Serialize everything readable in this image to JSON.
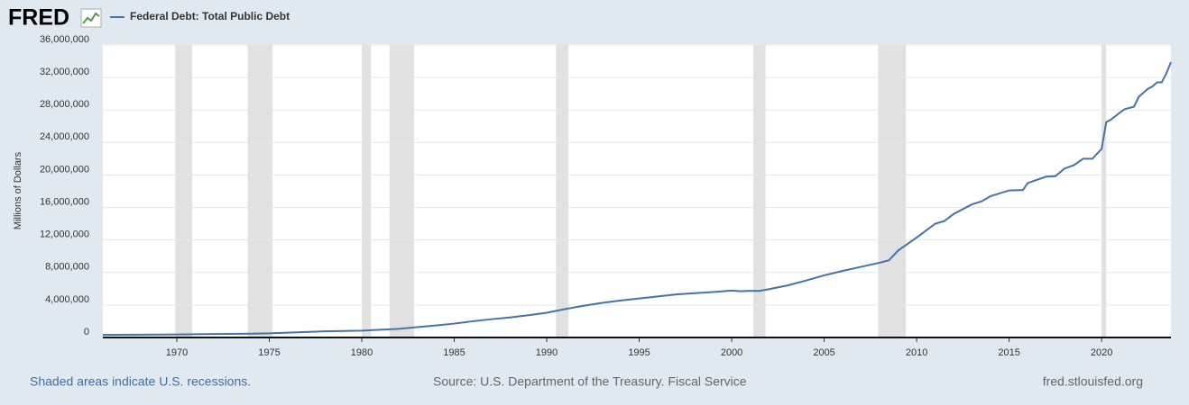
{
  "chart_data": {
    "type": "line",
    "logo": "FRED",
    "y_label": "Millions of Dollars",
    "note": "Shaded areas indicate U.S. recessions.",
    "source": "Source: U.S. Department of the Treasury. Fiscal Service",
    "site": "fred.stlouisfed.org",
    "x": [
      1966,
      1968,
      1970,
      1972,
      1974,
      1975,
      1976,
      1978,
      1980,
      1981,
      1982,
      1983,
      1984,
      1985,
      1986,
      1987,
      1988,
      1989,
      1990,
      1991,
      1992,
      1993,
      1994,
      1995,
      1996,
      1997,
      1998,
      1999,
      2000,
      2000.5,
      2001,
      2001.5,
      2002,
      2003,
      2004,
      2005,
      2006,
      2007,
      2008,
      2008.5,
      2009,
      2010,
      2011,
      2011.5,
      2012,
      2013,
      2013.5,
      2014,
      2015,
      2015.75,
      2016,
      2017,
      2017.5,
      2018,
      2018.5,
      2019,
      2019.5,
      2020,
      2020.25,
      2020.5,
      2021,
      2021.25,
      2021.75,
      2022,
      2022.5,
      2022.75,
      2023,
      2023.25,
      2023.5,
      2023.75
    ],
    "series": [
      {
        "name": "Federal Debt: Total Public Debt",
        "color": "#4572a7",
        "values": [
          321000,
          348000,
          370000,
          428000,
          475000,
          509000,
          600000,
          760000,
          850000,
          960000,
          1070000,
          1270000,
          1480000,
          1710000,
          2000000,
          2250000,
          2460000,
          2740000,
          3050000,
          3500000,
          3900000,
          4260000,
          4560000,
          4800000,
          5050000,
          5300000,
          5460000,
          5600000,
          5770000,
          5690000,
          5740000,
          5730000,
          5940000,
          6400000,
          7000000,
          7650000,
          8200000,
          8700000,
          9200000,
          9500000,
          10700000,
          12300000,
          14000000,
          14340000,
          15200000,
          16400000,
          16740000,
          17400000,
          18100000,
          18150000,
          19000000,
          19800000,
          19850000,
          20800000,
          21200000,
          22000000,
          22000000,
          23200000,
          26500000,
          26800000,
          27700000,
          28100000,
          28400000,
          29600000,
          30600000,
          30900000,
          31400000,
          31400000,
          32500000,
          33900000
        ]
      }
    ],
    "recessions": [
      {
        "start": 1969.92,
        "end": 1970.83
      },
      {
        "start": 1973.83,
        "end": 1975.17
      },
      {
        "start": 1980.0,
        "end": 1980.5
      },
      {
        "start": 1981.5,
        "end": 1982.83
      },
      {
        "start": 1990.5,
        "end": 1991.17
      },
      {
        "start": 2001.17,
        "end": 2001.83
      },
      {
        "start": 2007.92,
        "end": 2009.42
      },
      {
        "start": 2020.0,
        "end": 2020.25
      }
    ],
    "recession_color": "#e1e1e1",
    "xlim": [
      1966,
      2023.75
    ],
    "xticks": [
      1970,
      1975,
      1980,
      1985,
      1990,
      1995,
      2000,
      2005,
      2010,
      2015,
      2020
    ],
    "ylim": [
      0,
      36000000
    ],
    "yticks": [
      0,
      {
        "value": 4000000,
        "label": "4,000,000"
      },
      {
        "value": 8000000,
        "label": "8,000,000"
      },
      {
        "value": 12000000,
        "label": "12,000,000"
      },
      {
        "value": 16000000,
        "label": "16,000,000"
      },
      {
        "value": 20000000,
        "label": "20,000,000"
      },
      {
        "value": 24000000,
        "label": "24,000,000"
      },
      {
        "value": 28000000,
        "label": "28,000,000"
      },
      {
        "value": 32000000,
        "label": "32,000,000"
      },
      {
        "value": 36000000,
        "label": "36,000,000"
      }
    ],
    "grid": true
  }
}
